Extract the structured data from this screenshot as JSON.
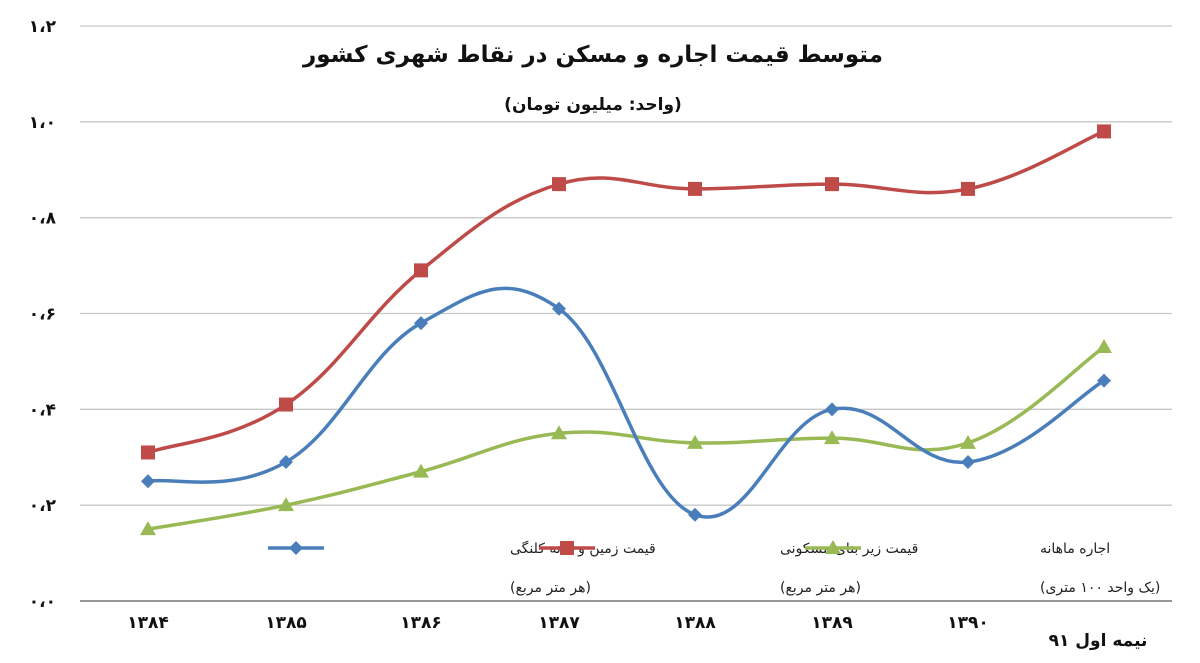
{
  "chart_data": {
    "type": "line",
    "title": "متوسط قیمت اجاره و مسکن در نقاط شهری کشور",
    "subtitle": "(واحد: میلیون تومان)",
    "categories": [
      "۱۳۸۴",
      "۱۳۸۵",
      "۱۳۸۶",
      "۱۳۸۷",
      "۱۳۸۸",
      "۱۳۸۹",
      "۱۳۹۰",
      "نیمه اول ۹۱"
    ],
    "y_tick_labels": [
      "۰،۰",
      "۰،۲",
      "۰،۴",
      "۰،۶",
      "۰،۸",
      "۱،۰",
      "۱،۲"
    ],
    "ylim": [
      0,
      1.2
    ],
    "grid": true,
    "legend_position": "bottom",
    "series": [
      {
        "name": "قیمت زمین و خانه کلنگی",
        "note": "(هر متر مربع)",
        "color": "#4a7ebb",
        "marker": "diamond",
        "values": [
          0.25,
          0.29,
          0.58,
          0.61,
          0.18,
          0.4,
          0.29,
          0.46
        ]
      },
      {
        "name": "قیمت زیر بنای مسکونی",
        "note": "(هر متر مربع)",
        "color": "#be4b48",
        "marker": "square",
        "values": [
          0.31,
          0.41,
          0.69,
          0.87,
          0.86,
          0.87,
          0.86,
          0.98
        ]
      },
      {
        "name": "اجاره ماهانه",
        "note": "(یک واحد ۱۰۰ متری)",
        "color": "#98b954",
        "marker": "triangle",
        "values": [
          0.15,
          0.2,
          0.27,
          0.35,
          0.33,
          0.34,
          0.33,
          0.53
        ]
      }
    ]
  }
}
